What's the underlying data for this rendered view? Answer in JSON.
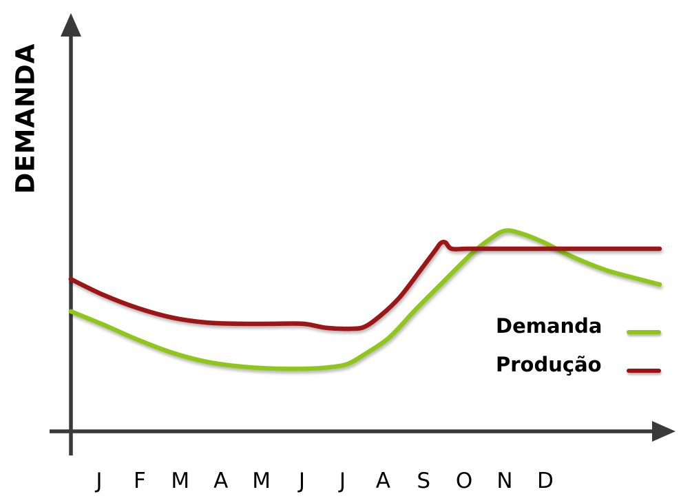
{
  "page": {
    "background": "#FFFFFF",
    "axis_color": "#3A3A3A",
    "text_color": "#000000"
  },
  "chart_data": {
    "type": "line",
    "title": "",
    "xlabel": "",
    "ylabel": "DEMANDA",
    "categories": [
      "J",
      "F",
      "M",
      "A",
      "M",
      "J",
      "J",
      "A",
      "S",
      "O",
      "N",
      "D"
    ],
    "ylim": [
      0,
      100
    ],
    "grid": false,
    "legend_position": "inside-right",
    "series": [
      {
        "name": "Demanda",
        "color": "#8FC51A",
        "values": [
          52,
          44,
          36,
          33,
          30,
          30,
          32,
          43,
          63,
          82,
          97,
          91
        ],
        "detail_points": [
          [
            -0.7,
            57.7
          ],
          [
            0.1,
            51.3
          ],
          [
            0.95,
            44.0
          ],
          [
            1.8,
            37.7
          ],
          [
            2.65,
            33.3
          ],
          [
            3.5,
            31.0
          ],
          [
            4.35,
            30.0
          ],
          [
            5.2,
            30.0
          ],
          [
            5.7,
            30.7
          ],
          [
            6.13,
            32.3
          ],
          [
            6.55,
            37.0
          ],
          [
            7.15,
            45.0
          ],
          [
            7.79,
            58.3
          ],
          [
            8.47,
            71.7
          ],
          [
            9.19,
            85.7
          ],
          [
            9.61,
            92.3
          ],
          [
            10.0,
            96.7
          ],
          [
            10.42,
            95.3
          ],
          [
            10.97,
            91.0
          ],
          [
            11.65,
            84.3
          ],
          [
            12.49,
            77.7
          ],
          [
            13.17,
            74.0
          ],
          [
            13.82,
            70.7
          ]
        ]
      },
      {
        "name": "Produção",
        "color": "#9B1212",
        "values": [
          67,
          59,
          54,
          52,
          52,
          52,
          49,
          56,
          80,
          88,
          88,
          88
        ],
        "detail_points": [
          [
            -0.7,
            73.3
          ],
          [
            0.1,
            65.7
          ],
          [
            0.95,
            59.3
          ],
          [
            1.8,
            54.7
          ],
          [
            2.65,
            52.3
          ],
          [
            3.5,
            51.7
          ],
          [
            4.26,
            51.7
          ],
          [
            5.03,
            51.7
          ],
          [
            5.62,
            49.7
          ],
          [
            6.21,
            49.3
          ],
          [
            6.55,
            50.3
          ],
          [
            6.94,
            55.7
          ],
          [
            7.4,
            64.3
          ],
          [
            7.91,
            77.3
          ],
          [
            8.29,
            87.3
          ],
          [
            8.42,
            90.7
          ],
          [
            8.54,
            91.0
          ],
          [
            8.69,
            88.0
          ],
          [
            9.1,
            88.0
          ],
          [
            10.12,
            88.0
          ],
          [
            12.0,
            88.0
          ],
          [
            13.82,
            88.0
          ]
        ]
      }
    ]
  }
}
